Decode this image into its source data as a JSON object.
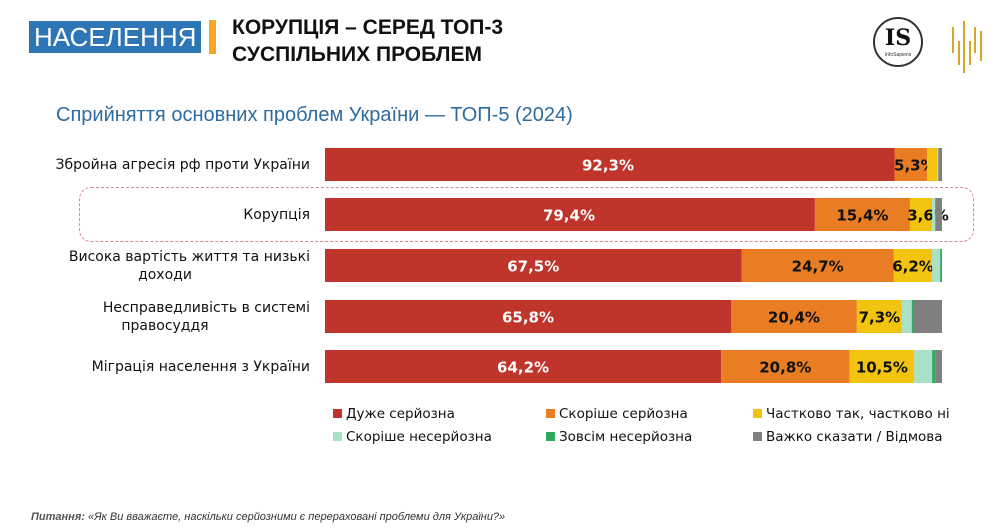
{
  "header": {
    "section": "НАСЕЛЕННЯ",
    "headline_line1": "КОРУПЦІЯ – СЕРЕД ТОП-3",
    "headline_line2": "СУСПІЛЬНИХ ПРОБЛЕМ",
    "logo_text": "IS",
    "logo_subtext": "InfoSapiens",
    "accent_color": "#f5a623",
    "badge_color": "#2e75b6"
  },
  "footnote": {
    "label": "Питання:",
    "text": " «Як Ви вважаєте, наскільки серйозними є перераховані проблеми для України?»"
  },
  "chart_data": {
    "type": "bar",
    "orientation": "horizontal",
    "stacked": true,
    "title": "Сприйняття основних проблем України — ТОП-5 (2024)",
    "xlabel": "",
    "ylabel": "",
    "xlim": [
      0,
      100
    ],
    "unit": "%",
    "grid": false,
    "legend_position": "bottom",
    "highlighted_category": "Корупція",
    "categories": [
      "Збройна агресія рф проти України",
      "Корупція",
      "Висока вартість життя та низькі доходи",
      "Несправедливість в системі правосуддя",
      "Міграція населення з України"
    ],
    "category_lines": [
      [
        "Збройна агресія рф проти України"
      ],
      [
        "Корупція"
      ],
      [
        "Висока вартість життя та низькі",
        "доходи"
      ],
      [
        "Несправедливість в системі",
        "правосуддя"
      ],
      [
        "Міграція населення з України"
      ]
    ],
    "series": [
      {
        "name": "Дуже серйозна",
        "color": "#c0352b",
        "label_color": "#ffffff",
        "values": [
          92.3,
          79.4,
          67.5,
          65.8,
          64.2
        ],
        "labels": [
          "92,3%",
          "79,4%",
          "67,5%",
          "65,8%",
          "64,2%"
        ]
      },
      {
        "name": "Скоріше серйозна",
        "color": "#e87d24",
        "label_color": "#111111",
        "values": [
          5.3,
          15.4,
          24.7,
          20.4,
          20.8
        ],
        "labels": [
          "5,3%",
          "15,4%",
          "24,7%",
          "20,4%",
          "20,8%"
        ]
      },
      {
        "name": "Частково так, частково ні",
        "color": "#f2c40f",
        "label_color": "#111111",
        "values": [
          1.6,
          3.6,
          6.2,
          7.3,
          10.5
        ],
        "labels": [
          "",
          "3,6%",
          "6,2%",
          "7,3%",
          "10,5%"
        ]
      },
      {
        "name": "Скоріше несерйозна",
        "color": "#a8e0c8",
        "label_color": "#111111",
        "values": [
          0.2,
          0.5,
          1.3,
          1.6,
          2.9
        ],
        "labels": [
          "",
          "",
          "",
          "",
          ""
        ]
      },
      {
        "name": "Зовсім несерйозна",
        "color": "#2eaa5c",
        "label_color": "#111111",
        "values": [
          0.0,
          0.0,
          0.3,
          0.2,
          0.5
        ],
        "labels": [
          "",
          "",
          "",
          "",
          ""
        ]
      },
      {
        "name": "Важко сказати / Відмова",
        "color": "#7f7f7f",
        "label_color": "#111111",
        "values": [
          0.6,
          1.1,
          0.0,
          4.7,
          1.1
        ],
        "labels": [
          "",
          "",
          "",
          "",
          ""
        ]
      }
    ]
  }
}
